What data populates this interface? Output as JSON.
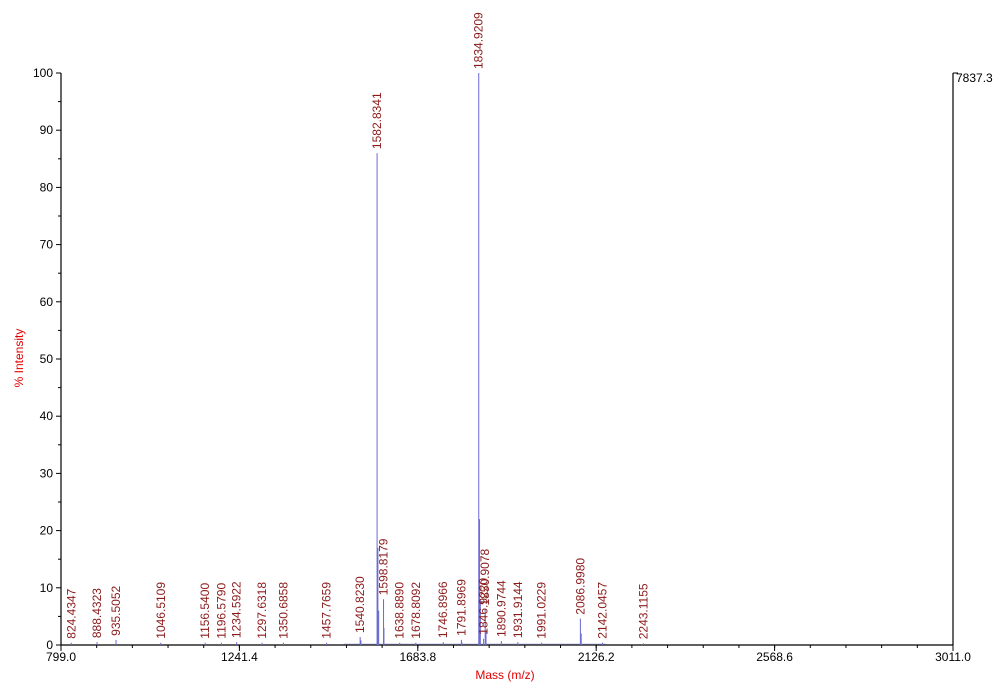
{
  "chart_data": {
    "type": "line",
    "title": "",
    "xlabel": "Mass (m/z)",
    "ylabel": "% Intensity",
    "xlim": [
      799.0,
      3011.0
    ],
    "ylim": [
      0,
      100
    ],
    "x_ticks": [
      "799.0",
      "1241.4",
      "1683.8",
      "2126.2",
      "2568.6",
      "3011.0"
    ],
    "x_tick_values": [
      799.0,
      1241.4,
      1683.8,
      2126.2,
      2568.6,
      3011.0
    ],
    "y_ticks": [
      0,
      10,
      20,
      30,
      40,
      50,
      60,
      70,
      80,
      90,
      100
    ],
    "max_intensity_label": "7837.3",
    "line_color": "#6a6ad0",
    "axis_title_color": "#e00000",
    "peak_label_color": "#8b1a1a",
    "peaks": [
      {
        "x": 824.4347,
        "y": 0.4,
        "label": "824.4347"
      },
      {
        "x": 888.4323,
        "y": 0.5,
        "label": "888.4323"
      },
      {
        "x": 935.5052,
        "y": 0.9,
        "label": "935.5052"
      },
      {
        "x": 1046.5109,
        "y": 0.4,
        "label": "1046.5109"
      },
      {
        "x": 1156.54,
        "y": 0.4,
        "label": "1156.5400"
      },
      {
        "x": 1196.579,
        "y": 0.4,
        "label": "1196.5790"
      },
      {
        "x": 1234.5922,
        "y": 0.5,
        "label": "1234.5922"
      },
      {
        "x": 1297.6318,
        "y": 0.4,
        "label": "1297.6318"
      },
      {
        "x": 1350.6858,
        "y": 0.4,
        "label": "1350.6858"
      },
      {
        "x": 1457.7659,
        "y": 0.4,
        "label": "1457.7659"
      },
      {
        "x": 1540.823,
        "y": 1.4,
        "label": "1540.8230"
      },
      {
        "x": 1582.8341,
        "y": 86.0,
        "label": "1582.8341"
      },
      {
        "x": 1598.8179,
        "y": 8.0,
        "label": "1598.8179"
      },
      {
        "x": 1638.889,
        "y": 0.4,
        "label": "1638.8890"
      },
      {
        "x": 1678.8092,
        "y": 0.4,
        "label": "1678.8092"
      },
      {
        "x": 1746.8966,
        "y": 0.5,
        "label": "1746.8966"
      },
      {
        "x": 1791.8969,
        "y": 0.9,
        "label": "1791.8969"
      },
      {
        "x": 1834.9209,
        "y": 100.0,
        "label": "1834.9209"
      },
      {
        "x": 1846.922,
        "y": 1.1,
        "label": "1846.9220"
      },
      {
        "x": 1850.9078,
        "y": 6.2,
        "label": "1850.9078"
      },
      {
        "x": 1890.9744,
        "y": 0.7,
        "label": "1890.9744"
      },
      {
        "x": 1931.9144,
        "y": 0.5,
        "label": "1931.9144"
      },
      {
        "x": 1991.0229,
        "y": 0.4,
        "label": "1991.0229"
      },
      {
        "x": 2086.998,
        "y": 4.6,
        "label": "2086.9980"
      },
      {
        "x": 2142.0457,
        "y": 0.4,
        "label": "2142.0457"
      },
      {
        "x": 2243.1155,
        "y": 0.3,
        "label": "2243.1155"
      }
    ],
    "minor_peaks": [
      {
        "x": 1584.83,
        "y": 17.0
      },
      {
        "x": 1586.83,
        "y": 6.0
      },
      {
        "x": 1836.92,
        "y": 22.0
      },
      {
        "x": 1838.92,
        "y": 8.0
      },
      {
        "x": 1599.82,
        "y": 3.0
      },
      {
        "x": 1852.91,
        "y": 2.5
      },
      {
        "x": 2088.99,
        "y": 2.0
      },
      {
        "x": 1542.82,
        "y": 0.8
      },
      {
        "x": 1792.9,
        "y": 0.5
      }
    ]
  }
}
